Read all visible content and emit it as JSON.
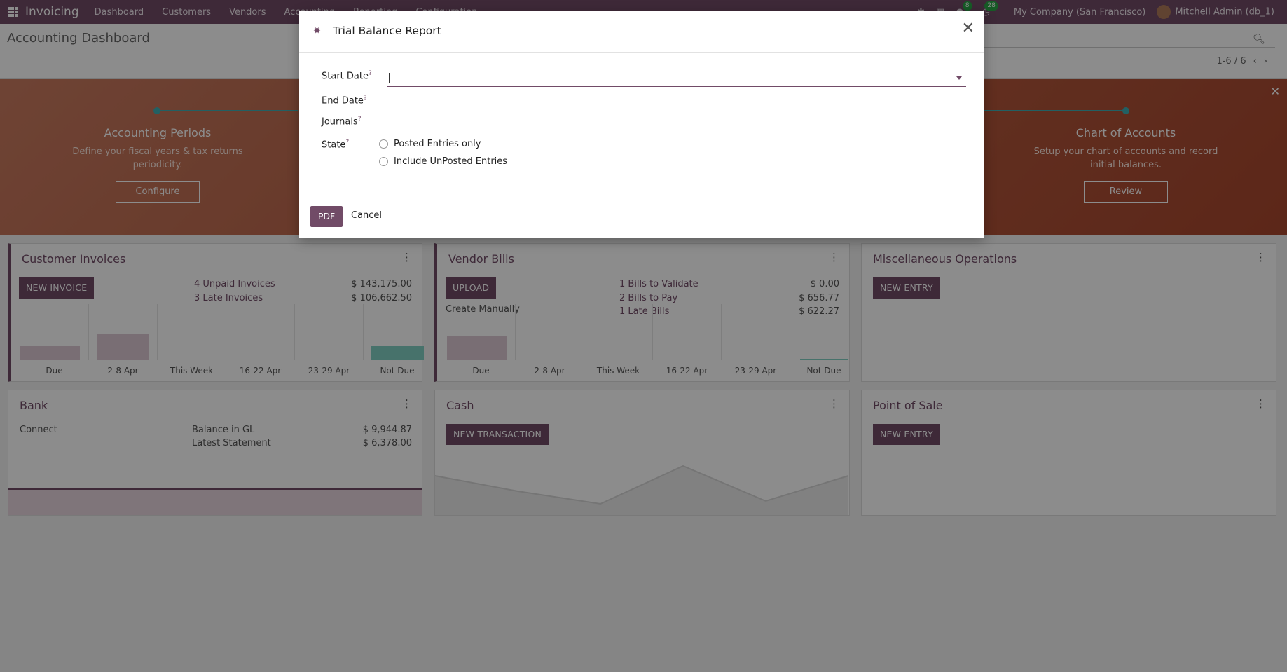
{
  "navbar": {
    "app_name": "Invoicing",
    "menu": [
      "Dashboard",
      "Customers",
      "Vendors",
      "Accounting",
      "Reporting",
      "Configuration"
    ],
    "messages_count": "8",
    "activities_count": "28",
    "company": "My Company (San Francisco)",
    "user": "Mitchell Admin (db_1)"
  },
  "control_panel": {
    "title": "Accounting Dashboard",
    "pager": "1-6 / 6"
  },
  "banner": {
    "steps": [
      {
        "title": "Accounting Periods",
        "desc1": "Define your fiscal years & tax returns",
        "desc2": "periodicity.",
        "button": "Configure"
      },
      {
        "title": "Chart of Accounts",
        "desc1": "Setup your chart of accounts and record",
        "desc2": "initial balances.",
        "button": "Review"
      }
    ]
  },
  "cards": {
    "customer_invoices": {
      "title": "Customer Invoices",
      "button": "NEW INVOICE",
      "stats": [
        {
          "label": "4 Unpaid Invoices",
          "value": "$ 143,175.00"
        },
        {
          "label": "3 Late Invoices",
          "value": "$ 106,662.50"
        }
      ],
      "bar_labels": [
        "Due",
        "2-8 Apr",
        "This Week",
        "16-22 Apr",
        "23-29 Apr",
        "Not Due"
      ]
    },
    "vendor_bills": {
      "title": "Vendor Bills",
      "button": "UPLOAD",
      "link": "Create Manually",
      "stats": [
        {
          "label": "1 Bills to Validate",
          "value": "$ 0.00"
        },
        {
          "label": "2 Bills to Pay",
          "value": "$ 656.77"
        },
        {
          "label": "1 Late Bills",
          "value": "$ 622.27"
        }
      ],
      "bar_labels": [
        "Due",
        "2-8 Apr",
        "This Week",
        "16-22 Apr",
        "23-29 Apr",
        "Not Due"
      ]
    },
    "misc": {
      "title": "Miscellaneous Operations",
      "button": "NEW ENTRY"
    },
    "bank": {
      "title": "Bank",
      "link": "Connect",
      "stats": [
        {
          "label": "Balance in GL",
          "value": "$ 9,944.87"
        },
        {
          "label": "Latest Statement",
          "value": "$ 6,378.00"
        }
      ]
    },
    "cash": {
      "title": "Cash",
      "button": "NEW TRANSACTION"
    },
    "pos": {
      "title": "Point of Sale",
      "button": "NEW ENTRY"
    }
  },
  "modal": {
    "title": "Trial Balance Report",
    "fields": {
      "start_date": "Start Date",
      "end_date": "End Date",
      "journals": "Journals",
      "state": "State",
      "help": "?"
    },
    "start_date_value": "",
    "state_options": [
      "Posted Entries only",
      "Include UnPosted Entries"
    ],
    "pdf_button": "PDF",
    "cancel_button": "Cancel"
  }
}
